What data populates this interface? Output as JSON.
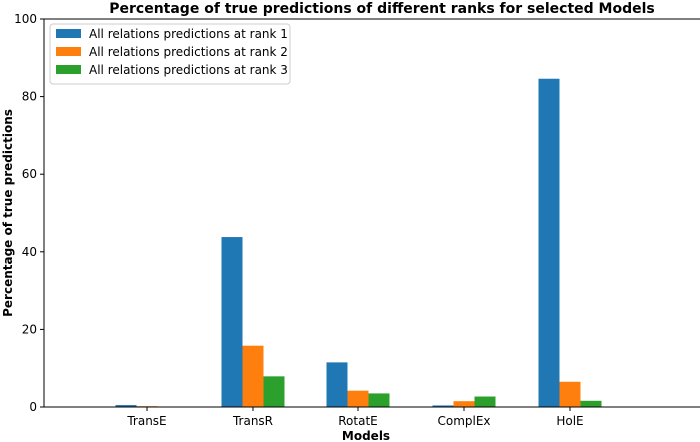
{
  "chart_data": {
    "type": "bar",
    "title": "Percentage of true predictions of different ranks for selected Models",
    "xlabel": "Models",
    "ylabel": "Percentage of true predictions",
    "categories": [
      "TransE",
      "TransR",
      "RotatE",
      "ComplEx",
      "HolE"
    ],
    "ylim": [
      0,
      100
    ],
    "yticks": [
      0,
      20,
      40,
      60,
      80,
      100
    ],
    "grid": false,
    "legend_position": "top-left",
    "series": [
      {
        "name": "All relations predictions at rank 1",
        "color": "#1f77b4",
        "values": [
          0.5,
          43.8,
          11.5,
          0.4,
          84.6
        ]
      },
      {
        "name": "All relations predictions at rank 2",
        "color": "#ff7f0e",
        "values": [
          0.2,
          15.8,
          4.2,
          1.5,
          6.5
        ]
      },
      {
        "name": "All relations predictions at rank 3",
        "color": "#2ca02c",
        "values": [
          0.1,
          7.9,
          3.5,
          2.7,
          1.6
        ]
      }
    ]
  }
}
